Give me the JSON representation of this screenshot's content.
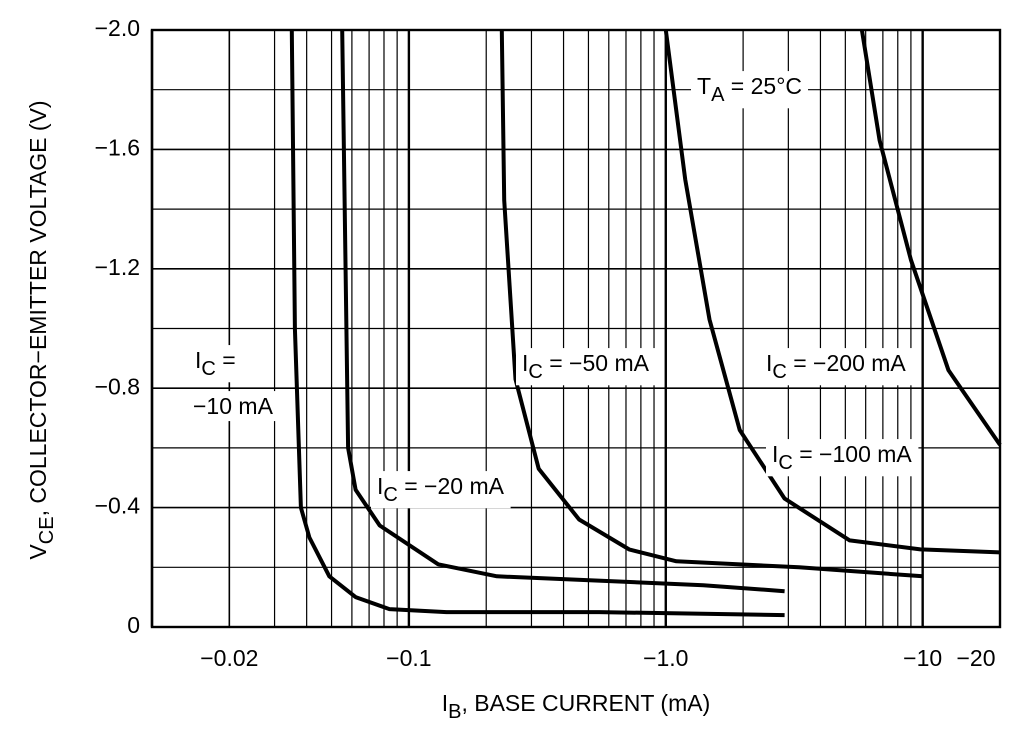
{
  "chart_data": {
    "type": "line",
    "title": {
      "main": "T",
      "sub": "A",
      "rest": " = 25°C"
    },
    "x_label": {
      "main": "I",
      "sub": "B",
      "rest": ", BASE CURRENT (mA)"
    },
    "y_label": {
      "main": "V",
      "sub": "CE",
      "rest": ", COLLECTOR−EMITTER VOLTAGE (V)"
    },
    "xscale": "log",
    "grid": true,
    "xlim": [
      -0.01,
      -20
    ],
    "ylim": [
      0,
      -2.0
    ],
    "xticks": [
      {
        "value": -0.02,
        "label": "−0.02"
      },
      {
        "value": -0.1,
        "label": "−0.1"
      },
      {
        "value": -1.0,
        "label": "−1.0"
      },
      {
        "value": -10,
        "label": "−10"
      },
      {
        "value": -20,
        "label": "−20"
      }
    ],
    "minor_xticks": [
      -0.03,
      -0.04,
      -0.05,
      -0.06,
      -0.07,
      -0.08,
      -0.09,
      -0.2,
      -0.3,
      -0.4,
      -0.5,
      -0.6,
      -0.7,
      -0.8,
      -0.9,
      -2,
      -3,
      -4,
      -5,
      -6,
      -7,
      -8,
      -9
    ],
    "yticks": [
      0,
      {
        "value": -0.4,
        "label": "−0.4"
      },
      {
        "value": -0.8,
        "label": "−0.8"
      },
      {
        "value": -1.2,
        "label": "−1.2"
      },
      {
        "value": -1.6,
        "label": "−1.6"
      },
      {
        "value": -2.0,
        "label": "−2.0"
      }
    ],
    "minor_yticks": [
      -0.2,
      -0.6,
      -1.0,
      -1.4,
      -1.8
    ],
    "series": [
      {
        "label": {
          "main": "I",
          "sub": "C",
          "rest": " =",
          "line2": "−10 mA"
        },
        "color": "#000000",
        "x": [
          -0.035,
          -0.036,
          -0.038,
          -0.041,
          -0.049,
          -0.062,
          -0.084,
          -0.14,
          -0.55,
          -2.9
        ],
        "values": [
          -2.0,
          -1.0,
          -0.4,
          -0.3,
          -0.17,
          -0.1,
          -0.06,
          -0.05,
          -0.05,
          -0.04
        ]
      },
      {
        "label": {
          "main": "I",
          "sub": "C",
          "rest": " = −20 mA"
        },
        "color": "#000000",
        "x": [
          -0.055,
          -0.058,
          -0.062,
          -0.077,
          -0.13,
          -0.22,
          -1.4,
          -2.9
        ],
        "values": [
          -2.0,
          -0.6,
          -0.46,
          -0.34,
          -0.21,
          -0.17,
          -0.14,
          -0.12
        ]
      },
      {
        "label": {
          "main": "I",
          "sub": "C",
          "rest": " = −50 mA"
        },
        "color": "#000000",
        "x": [
          -0.23,
          -0.235,
          -0.26,
          -0.32,
          -0.46,
          -0.72,
          -1.1,
          -3.3,
          -10
        ],
        "values": [
          -2.0,
          -1.43,
          -0.83,
          -0.53,
          -0.36,
          -0.26,
          -0.22,
          -0.2,
          -0.17
        ]
      },
      {
        "label": {
          "main": "I",
          "sub": "C",
          "rest": " = −100 mA"
        },
        "color": "#000000",
        "x": [
          -1.0,
          -1.19,
          -1.48,
          -1.94,
          -2.9,
          -5.2,
          -9.8,
          -20
        ],
        "values": [
          -2.0,
          -1.5,
          -1.03,
          -0.66,
          -0.43,
          -0.29,
          -0.26,
          -0.25
        ]
      },
      {
        "label": {
          "main": "I",
          "sub": "C",
          "rest": " = −200 mA"
        },
        "color": "#000000",
        "x": [
          -5.8,
          -6.8,
          -9,
          -12.6,
          -20
        ],
        "values": [
          -2.0,
          -1.63,
          -1.23,
          -0.86,
          -0.61
        ]
      }
    ]
  }
}
